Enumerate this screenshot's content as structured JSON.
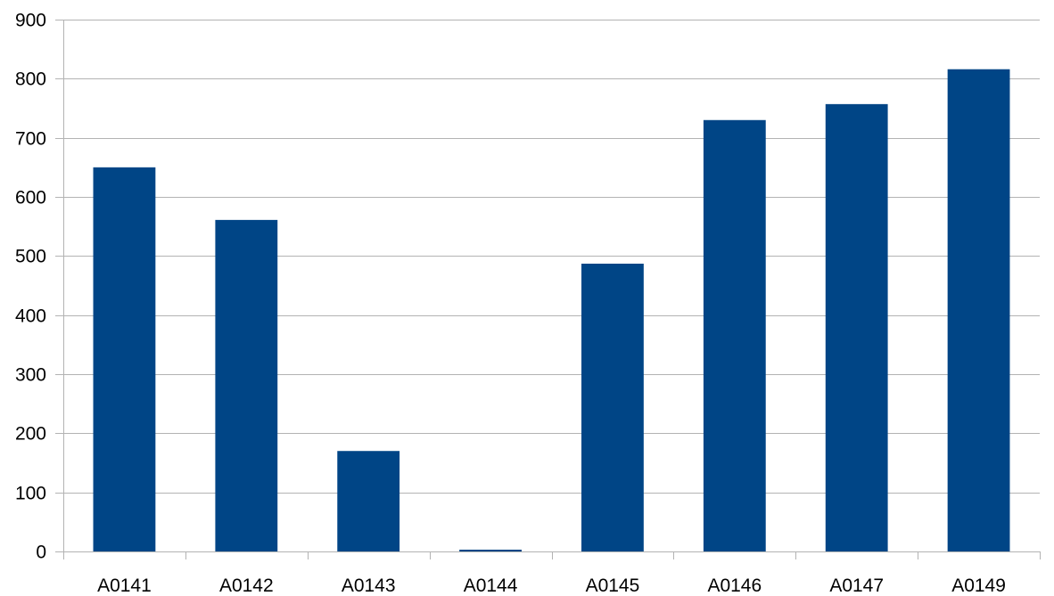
{
  "chart_data": {
    "type": "bar",
    "categories": [
      "A0141",
      "A0142",
      "A0143",
      "A0144",
      "A0145",
      "A0146",
      "A0147",
      "A0149"
    ],
    "values": [
      650,
      561,
      170,
      3,
      487,
      730,
      757,
      816
    ],
    "ylim": [
      0,
      900
    ],
    "yticks": [
      0,
      100,
      200,
      300,
      400,
      500,
      600,
      700,
      800,
      900
    ],
    "grid": true,
    "legend": "none",
    "bar_color": "#004586",
    "grid_color": "#b3b3b3",
    "axis_color": "#b3b3b3"
  }
}
